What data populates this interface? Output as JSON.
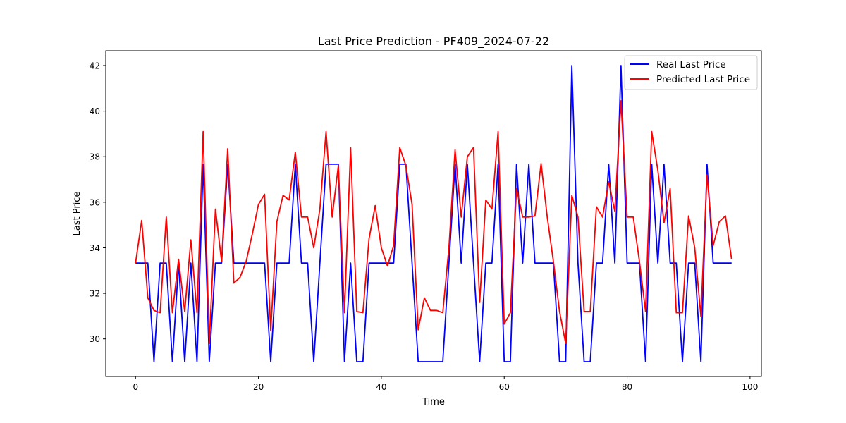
{
  "chart_data": {
    "type": "line",
    "title": "Last Price Prediction - PF409_2024-07-22",
    "xlabel": "Time",
    "ylabel": "Last Price",
    "xlim": [
      -4.85,
      101.85
    ],
    "ylim": [
      28.35,
      42.65
    ],
    "xticks": [
      0,
      20,
      40,
      60,
      80,
      100
    ],
    "yticks": [
      30,
      32,
      34,
      36,
      38,
      40,
      42
    ],
    "grid": false,
    "legend_position": "top-right",
    "x": [
      0,
      1,
      2,
      3,
      4,
      5,
      6,
      7,
      8,
      9,
      10,
      11,
      12,
      13,
      14,
      15,
      16,
      17,
      18,
      19,
      20,
      21,
      22,
      23,
      24,
      25,
      26,
      27,
      28,
      29,
      30,
      31,
      32,
      33,
      34,
      35,
      36,
      37,
      38,
      39,
      40,
      41,
      42,
      43,
      44,
      45,
      46,
      47,
      48,
      49,
      50,
      51,
      52,
      53,
      54,
      55,
      56,
      57,
      58,
      59,
      60,
      61,
      62,
      63,
      64,
      65,
      66,
      67,
      68,
      69,
      70,
      71,
      72,
      73,
      74,
      75,
      76,
      77,
      78,
      79,
      80,
      81,
      82,
      83,
      84,
      85,
      86,
      87,
      88,
      89,
      90,
      91,
      92,
      93,
      94,
      95,
      96,
      97
    ],
    "series": [
      {
        "name": "Real Last Price",
        "color": "#0000ff",
        "values": [
          33.33,
          33.33,
          33.33,
          29.0,
          33.33,
          33.33,
          29.0,
          33.33,
          29.0,
          33.33,
          29.0,
          37.67,
          29.0,
          33.33,
          33.33,
          37.67,
          33.33,
          33.33,
          33.33,
          33.33,
          33.33,
          33.33,
          29.0,
          33.33,
          33.33,
          33.33,
          37.67,
          33.33,
          33.33,
          29.0,
          33.33,
          37.67,
          37.67,
          37.67,
          29.0,
          33.33,
          29.0,
          29.0,
          33.33,
          33.33,
          33.33,
          33.33,
          33.33,
          37.67,
          37.67,
          33.33,
          29.0,
          29.0,
          29.0,
          29.0,
          29.0,
          33.33,
          37.67,
          33.33,
          37.67,
          33.33,
          29.0,
          33.33,
          33.33,
          37.67,
          29.0,
          29.0,
          37.67,
          33.33,
          37.67,
          33.33,
          33.33,
          33.33,
          33.33,
          29.0,
          29.0,
          42.0,
          33.33,
          29.0,
          29.0,
          33.33,
          33.33,
          37.67,
          33.33,
          42.0,
          33.33,
          33.33,
          33.33,
          29.0,
          37.67,
          33.33,
          37.67,
          33.33,
          33.33,
          29.0,
          33.33,
          33.33,
          29.0,
          37.67,
          33.33,
          33.33,
          33.33,
          33.33
        ]
      },
      {
        "name": "Predicted Last Price",
        "color": "#ff0000",
        "values": [
          33.33,
          35.2,
          31.8,
          31.25,
          31.15,
          35.35,
          31.15,
          33.5,
          31.2,
          34.35,
          31.15,
          39.1,
          29.8,
          35.7,
          33.4,
          38.35,
          32.45,
          32.7,
          33.4,
          34.6,
          35.9,
          36.35,
          30.35,
          35.15,
          36.3,
          36.1,
          38.2,
          35.35,
          35.35,
          34.0,
          35.7,
          39.1,
          35.35,
          37.6,
          31.15,
          38.4,
          31.2,
          31.15,
          34.4,
          35.85,
          34.0,
          33.2,
          34.1,
          38.4,
          37.6,
          35.9,
          30.4,
          31.8,
          31.25,
          31.25,
          31.15,
          34.0,
          38.3,
          35.35,
          38.0,
          38.4,
          31.6,
          36.1,
          35.7,
          39.1,
          30.65,
          31.15,
          36.6,
          35.35,
          35.35,
          35.4,
          37.7,
          35.35,
          33.4,
          31.2,
          29.8,
          36.3,
          35.35,
          31.2,
          31.2,
          35.8,
          35.35,
          36.9,
          35.6,
          40.45,
          35.35,
          35.35,
          33.4,
          31.2,
          39.1,
          37.4,
          35.1,
          36.6,
          31.15,
          31.15,
          35.4,
          34.0,
          31.0,
          37.2,
          34.1,
          35.15,
          35.4,
          33.5
        ]
      }
    ]
  }
}
